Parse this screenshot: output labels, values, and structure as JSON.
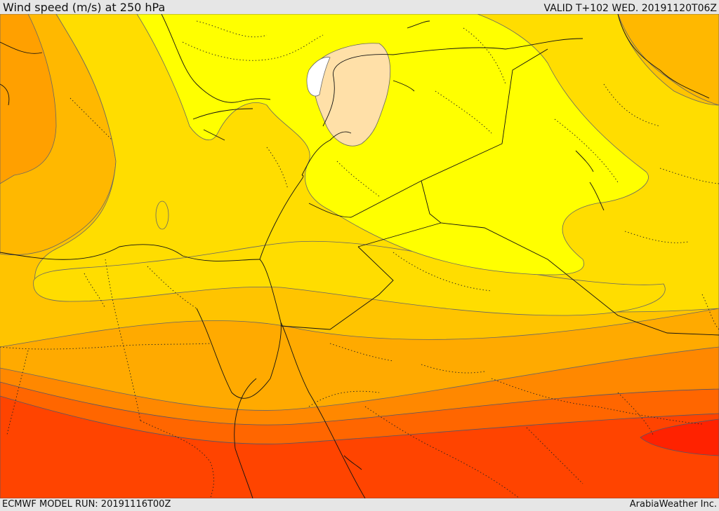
{
  "header": {
    "title": "Wind speed (m/s) at 250 hPa",
    "valid_time": "VALID T+102 WED. 20191120T06Z"
  },
  "footer": {
    "model_run": "ECMWF MODEL RUN: 20191116T00Z",
    "credit": "ArabiaWeather Inc."
  },
  "map": {
    "variable": "wind speed",
    "units": "m/s",
    "level": "250 hPa",
    "shading_colors": [
      "#ffffff",
      "#ffe0a8",
      "#ffff00",
      "#ffd700",
      "#ffc400",
      "#ffb000",
      "#ff9900",
      "#ff6600",
      "#ff4400",
      "#ff2200"
    ]
  }
}
